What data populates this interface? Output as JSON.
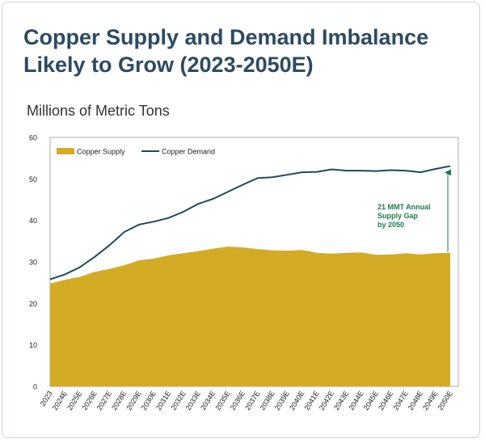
{
  "title": "Copper Supply and Demand Imbalance Likely to Grow (2023-2050E)",
  "unit_label": "Millions of Metric Tons",
  "colors": {
    "supply": "#d4ab25",
    "demand": "#1b4b5a",
    "annotation": "#1a7d4a",
    "title": "#2c4a63"
  },
  "chart_data": {
    "type": "area",
    "x": [
      "2023",
      "2024E",
      "2025E",
      "2026E",
      "2027E",
      "2028E",
      "2029E",
      "2030E",
      "2031E",
      "2032E",
      "2033E",
      "2034E",
      "2035E",
      "2036E",
      "2037E",
      "2038E",
      "2039E",
      "2040E",
      "2041E",
      "2042E",
      "2043E",
      "2044E",
      "2045E",
      "2046E",
      "2047E",
      "2048E",
      "2049E",
      "2050E"
    ],
    "series": [
      {
        "name": "Copper Supply",
        "kind": "area",
        "values": [
          24.8,
          25.7,
          26.4,
          27.6,
          28.3,
          29.2,
          30.4,
          30.8,
          31.6,
          32.1,
          32.6,
          33.2,
          33.7,
          33.5,
          33.1,
          32.8,
          32.7,
          32.9,
          32.2,
          32.0,
          32.2,
          32.3,
          31.7,
          31.8,
          32.1,
          31.8,
          32.1,
          32.2
        ]
      },
      {
        "name": "Copper Demand",
        "kind": "line",
        "values": [
          25.8,
          27.0,
          28.7,
          31.2,
          34.0,
          37.2,
          39.0,
          39.7,
          40.6,
          42.1,
          44.0,
          45.2,
          46.9,
          48.6,
          50.2,
          50.4,
          51.0,
          51.6,
          51.7,
          52.3,
          52.0,
          52.0,
          51.9,
          52.1,
          52.0,
          51.6,
          52.4,
          53.1
        ]
      }
    ],
    "ylim": [
      0,
      60
    ],
    "yticks": [
      0,
      10,
      20,
      30,
      40,
      50,
      60
    ],
    "grid": false,
    "legend": "top-left",
    "annotation": {
      "lines": [
        "21 MMT Annual",
        "Supply Gap",
        "by 2050"
      ],
      "from": 32.2,
      "to": 53.1,
      "category": "2050E"
    }
  }
}
